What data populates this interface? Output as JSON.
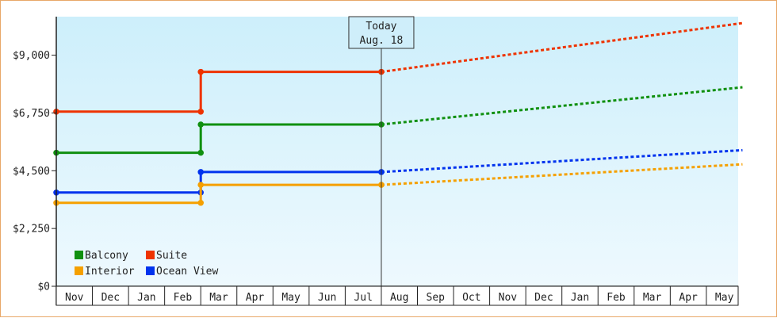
{
  "chart_data": {
    "type": "line",
    "title": "",
    "xlabel": "",
    "ylabel": "",
    "y_ticks": [
      "$0",
      "$2,250",
      "$4,500",
      "$6,750",
      "$9,000"
    ],
    "y_tick_values": [
      0,
      2250,
      4500,
      6750,
      9000
    ],
    "ylim": [
      0,
      10500
    ],
    "months": [
      "Nov",
      "Dec",
      "Jan",
      "Feb",
      "Mar",
      "Apr",
      "May",
      "Jun",
      "Jul",
      "Aug",
      "Sep",
      "Oct",
      "Nov",
      "Dec",
      "Jan",
      "Feb",
      "Mar",
      "Apr",
      "May"
    ],
    "today": {
      "label": "Today",
      "date": "Aug. 18",
      "month_index": 9
    },
    "background_gradient": [
      "#cdeffb",
      "#eef9fe"
    ],
    "grid": false,
    "legend_placement": "bottom-left",
    "series": [
      {
        "name": "Suite",
        "color": "#ee3300",
        "history": [
          [
            0,
            6800
          ],
          [
            4,
            6800
          ],
          [
            4,
            8350
          ],
          [
            9,
            8350
          ]
        ],
        "projection": [
          [
            9,
            8350
          ],
          [
            19,
            10250
          ]
        ]
      },
      {
        "name": "Balcony",
        "color": "#109010",
        "history": [
          [
            0,
            5200
          ],
          [
            4,
            5200
          ],
          [
            4,
            6300
          ],
          [
            9,
            6300
          ]
        ],
        "projection": [
          [
            9,
            6300
          ],
          [
            19,
            7750
          ]
        ]
      },
      {
        "name": "Ocean View",
        "color": "#0033ee",
        "history": [
          [
            0,
            3650
          ],
          [
            4,
            3650
          ],
          [
            4,
            4450
          ],
          [
            9,
            4450
          ]
        ],
        "projection": [
          [
            9,
            4450
          ],
          [
            19,
            5300
          ]
        ]
      },
      {
        "name": "Interior",
        "color": "#f5a000",
        "history": [
          [
            0,
            3250
          ],
          [
            4,
            3250
          ],
          [
            4,
            3950
          ],
          [
            9,
            3950
          ]
        ],
        "projection": [
          [
            9,
            3950
          ],
          [
            19,
            4750
          ]
        ]
      }
    ],
    "legend_order": [
      "Balcony",
      "Suite",
      "Interior",
      "Ocean View"
    ]
  }
}
